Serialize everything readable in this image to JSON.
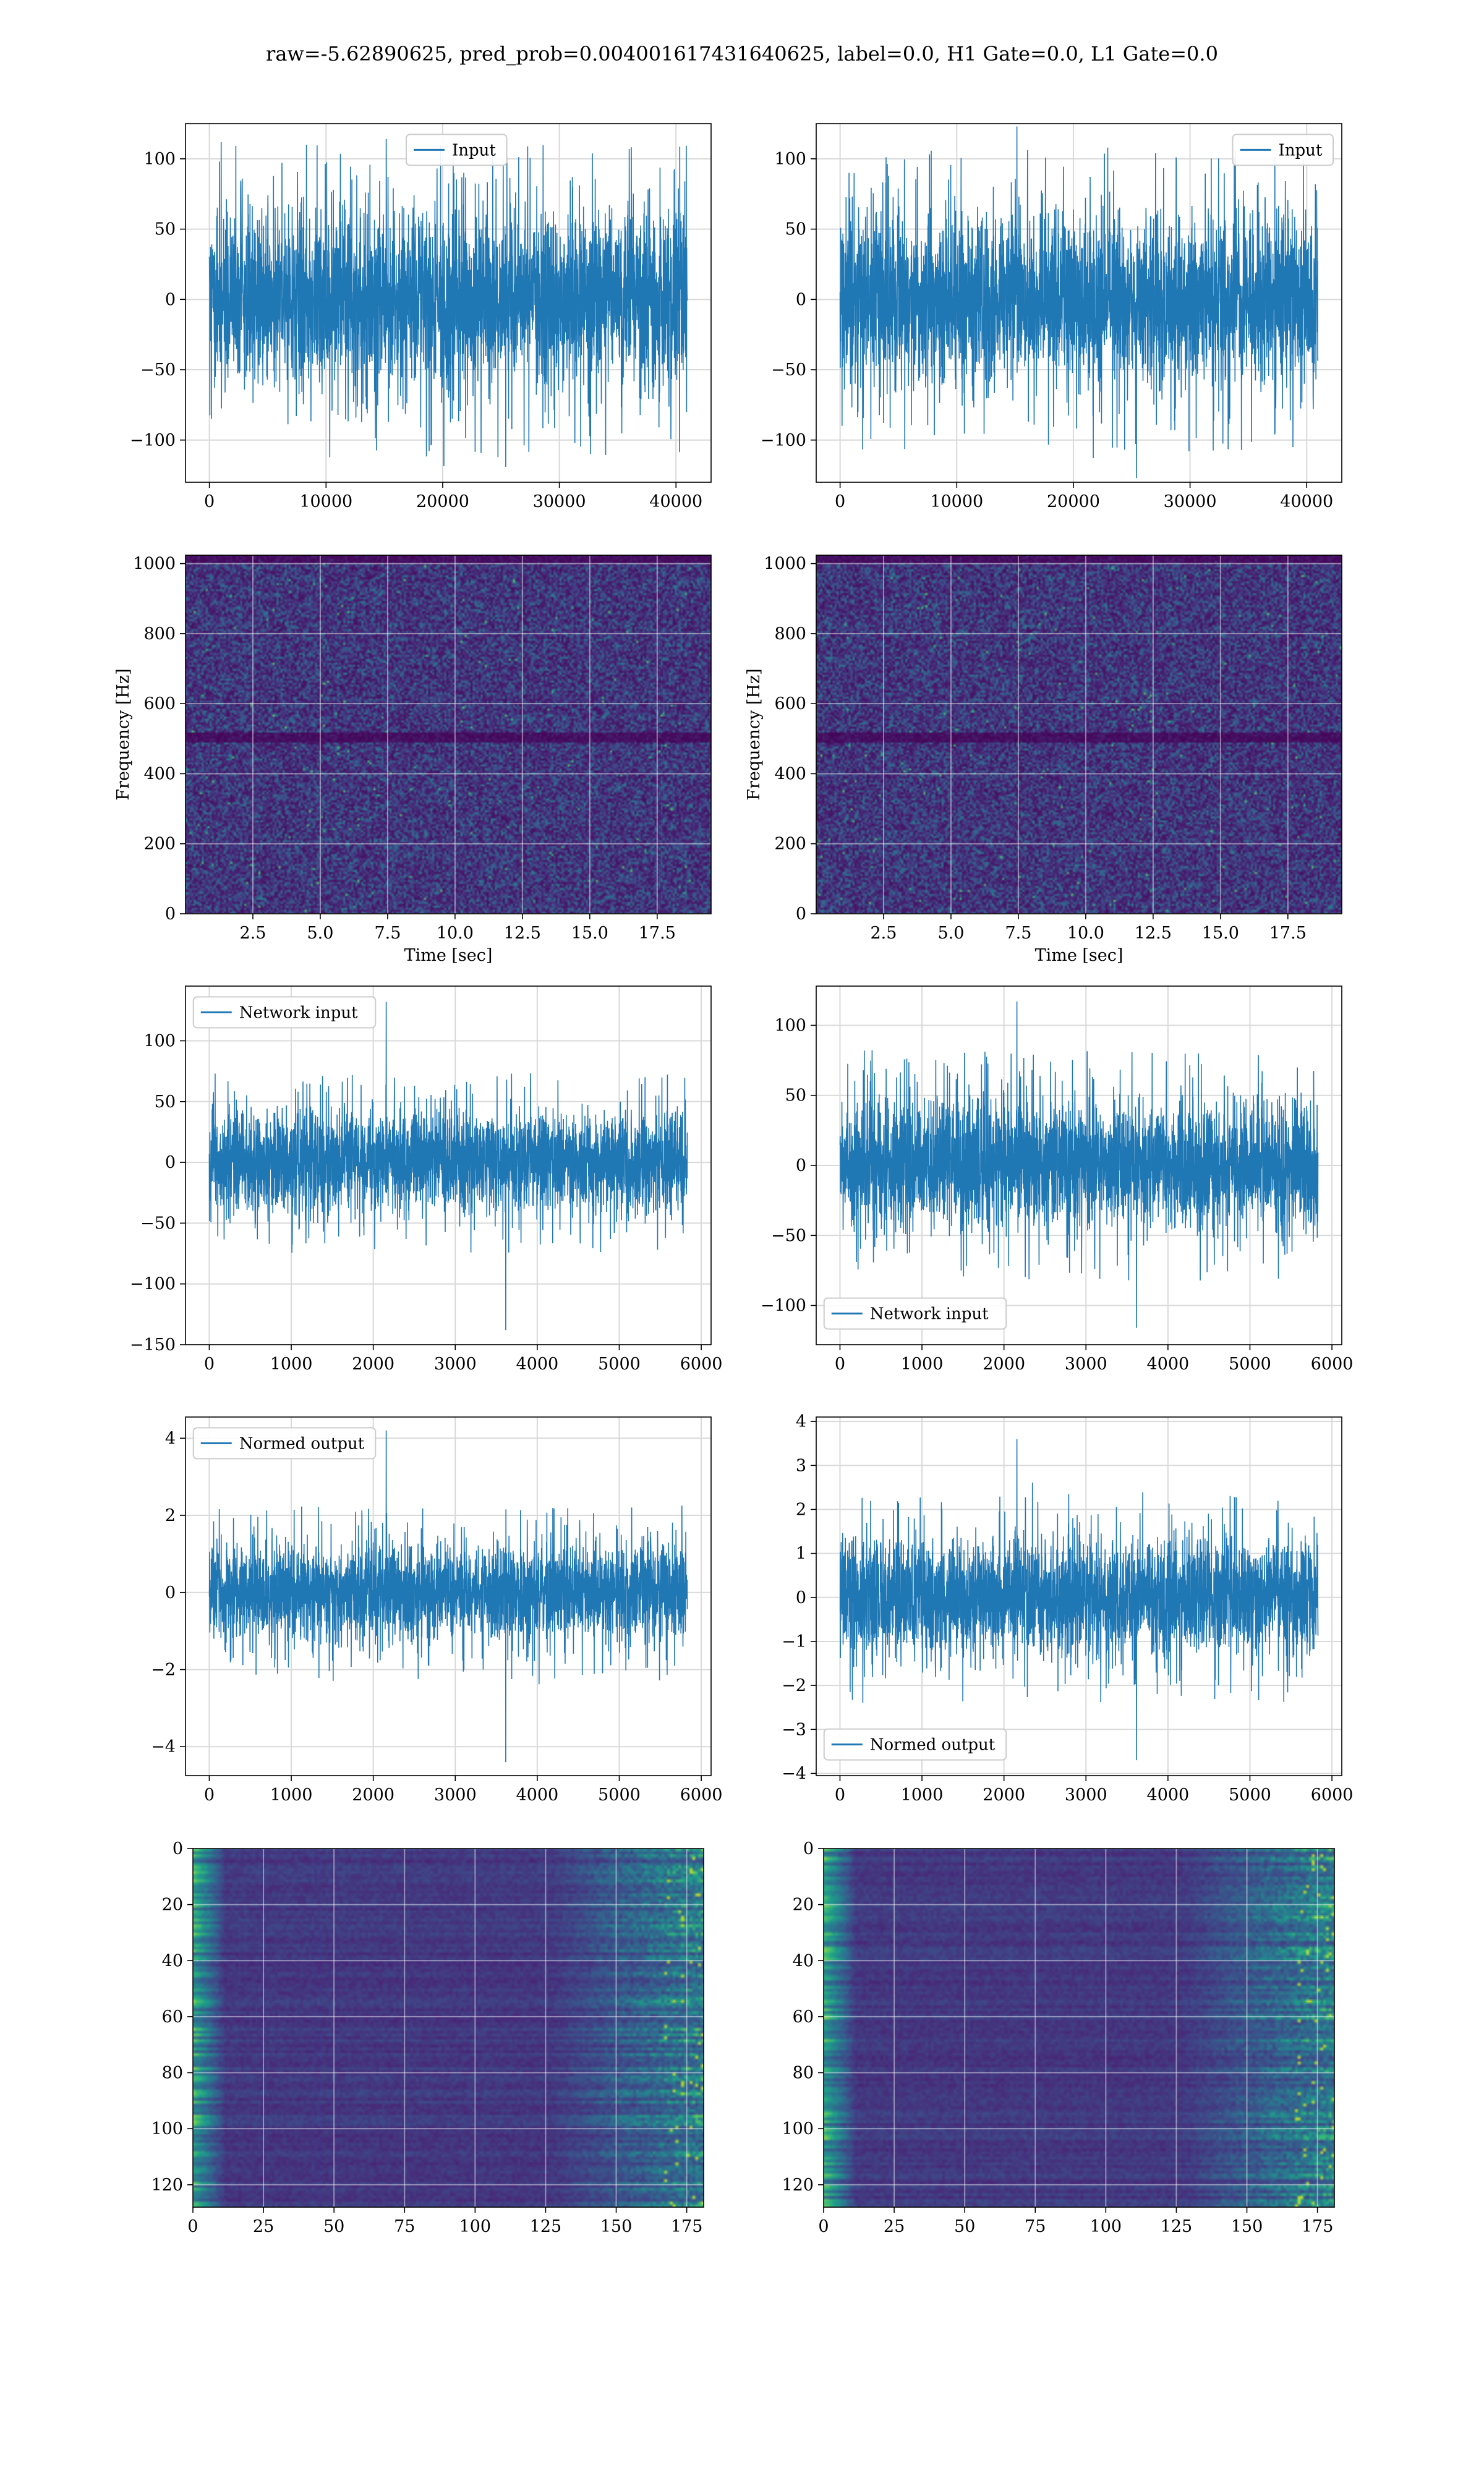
{
  "suptitle": "raw=-5.62890625, pred_prob=0.004001617431640625, label=0.0, H1 Gate=0.0, L1 Gate=0.0",
  "colors": {
    "series": "#1f77b4",
    "grid": "#d9d9d9",
    "axis": "#000000"
  },
  "chart_data": [
    {
      "type": "line",
      "title": "",
      "xlabel": "",
      "ylabel": "",
      "legend": {
        "labels": [
          "Input"
        ],
        "placement": "upper-center"
      },
      "xlim": [
        -2048,
        43008
      ],
      "ylim": [
        -130,
        125
      ],
      "xticks": [
        0,
        10000,
        20000,
        30000,
        40000
      ],
      "yticks": [
        -100,
        -50,
        0,
        50,
        100
      ],
      "x": [
        0,
        40960
      ],
      "envelope": {
        "typical": 75,
        "max": 114,
        "min": -119
      },
      "grid": true
    },
    {
      "type": "line",
      "title": "",
      "xlabel": "",
      "ylabel": "",
      "legend": {
        "labels": [
          "Input"
        ],
        "placement": "upper-right"
      },
      "xlim": [
        -2048,
        43008
      ],
      "ylim": [
        -130,
        125
      ],
      "xticks": [
        0,
        10000,
        20000,
        30000,
        40000
      ],
      "yticks": [
        -100,
        -50,
        0,
        50,
        100
      ],
      "x": [
        0,
        40960
      ],
      "envelope": {
        "typical": 72,
        "max": 123,
        "min": -127
      },
      "grid": true
    },
    {
      "type": "heatmap",
      "title": "",
      "xlabel": "Time [sec]",
      "ylabel": "Frequency [Hz]",
      "xlim": [
        0,
        19.5
      ],
      "ylim": [
        0,
        1024
      ],
      "xticks": [
        2.5,
        5.0,
        7.5,
        10.0,
        12.5,
        15.0,
        17.5
      ],
      "xtick_labels": [
        "2.5",
        "5.0",
        "7.5",
        "10.0",
        "12.5",
        "15.0",
        "17.5"
      ],
      "yticks": [
        0,
        200,
        400,
        600,
        800,
        1000
      ],
      "colormap": "viridis",
      "dark_band_hz": [
        490,
        520
      ],
      "grid": true
    },
    {
      "type": "heatmap",
      "title": "",
      "xlabel": "Time [sec]",
      "ylabel": "Frequency [Hz]",
      "xlim": [
        0,
        19.5
      ],
      "ylim": [
        0,
        1024
      ],
      "xticks": [
        2.5,
        5.0,
        7.5,
        10.0,
        12.5,
        15.0,
        17.5
      ],
      "xtick_labels": [
        "2.5",
        "5.0",
        "7.5",
        "10.0",
        "12.5",
        "15.0",
        "17.5"
      ],
      "yticks": [
        0,
        200,
        400,
        600,
        800,
        1000
      ],
      "colormap": "viridis",
      "dark_band_hz": [
        490,
        520
      ],
      "grid": true
    },
    {
      "type": "line",
      "title": "",
      "xlabel": "",
      "ylabel": "",
      "legend": {
        "labels": [
          "Network input"
        ],
        "placement": "upper-left"
      },
      "xlim": [
        -290,
        6120
      ],
      "ylim": [
        -150,
        145
      ],
      "xticks": [
        0,
        1000,
        2000,
        3000,
        4000,
        5000,
        6000
      ],
      "yticks": [
        -150,
        -100,
        -50,
        0,
        50,
        100
      ],
      "x": [
        0,
        5830
      ],
      "envelope": {
        "typical": 50,
        "max": 132,
        "min": -138
      },
      "grid": true
    },
    {
      "type": "line",
      "title": "",
      "xlabel": "",
      "ylabel": "",
      "legend": {
        "labels": [
          "Network input"
        ],
        "placement": "lower-left"
      },
      "xlim": [
        -290,
        6120
      ],
      "ylim": [
        -128,
        128
      ],
      "xticks": [
        0,
        1000,
        2000,
        3000,
        4000,
        5000,
        6000
      ],
      "yticks": [
        -100,
        -50,
        0,
        50,
        100
      ],
      "x": [
        0,
        5830
      ],
      "envelope": {
        "typical": 55,
        "max": 117,
        "min": -116
      },
      "grid": true
    },
    {
      "type": "line",
      "title": "",
      "xlabel": "",
      "ylabel": "",
      "legend": {
        "labels": [
          "Normed output"
        ],
        "placement": "upper-left"
      },
      "xlim": [
        -290,
        6120
      ],
      "ylim": [
        -4.75,
        4.55
      ],
      "xticks": [
        0,
        1000,
        2000,
        3000,
        4000,
        5000,
        6000
      ],
      "yticks": [
        -4,
        -2,
        0,
        2,
        4
      ],
      "x": [
        0,
        5830
      ],
      "envelope": {
        "typical": 1.5,
        "max": 4.2,
        "min": -4.4
      },
      "grid": true
    },
    {
      "type": "line",
      "title": "",
      "xlabel": "",
      "ylabel": "",
      "legend": {
        "labels": [
          "Normed output"
        ],
        "placement": "lower-left"
      },
      "xlim": [
        -290,
        6120
      ],
      "ylim": [
        -4.05,
        4.1
      ],
      "xticks": [
        0,
        1000,
        2000,
        3000,
        4000,
        5000,
        6000
      ],
      "yticks": [
        -4,
        -3,
        -2,
        -1,
        0,
        1,
        2,
        3,
        4
      ],
      "x": [
        0,
        5830
      ],
      "envelope": {
        "typical": 1.6,
        "max": 3.6,
        "min": -3.7
      },
      "grid": true
    },
    {
      "type": "heatmap",
      "title": "",
      "xlabel": "",
      "ylabel": "",
      "xlim": [
        0,
        181
      ],
      "ylim": [
        128,
        0
      ],
      "xticks": [
        0,
        25,
        50,
        75,
        100,
        125,
        150,
        175
      ],
      "yticks": [
        0,
        20,
        40,
        60,
        80,
        100,
        120
      ],
      "colormap": "viridis",
      "grid": true
    },
    {
      "type": "heatmap",
      "title": "",
      "xlabel": "",
      "ylabel": "",
      "xlim": [
        0,
        181
      ],
      "ylim": [
        128,
        0
      ],
      "xticks": [
        0,
        25,
        50,
        75,
        100,
        125,
        150,
        175
      ],
      "yticks": [
        0,
        20,
        40,
        60,
        80,
        100,
        120
      ],
      "colormap": "viridis",
      "grid": true
    }
  ]
}
